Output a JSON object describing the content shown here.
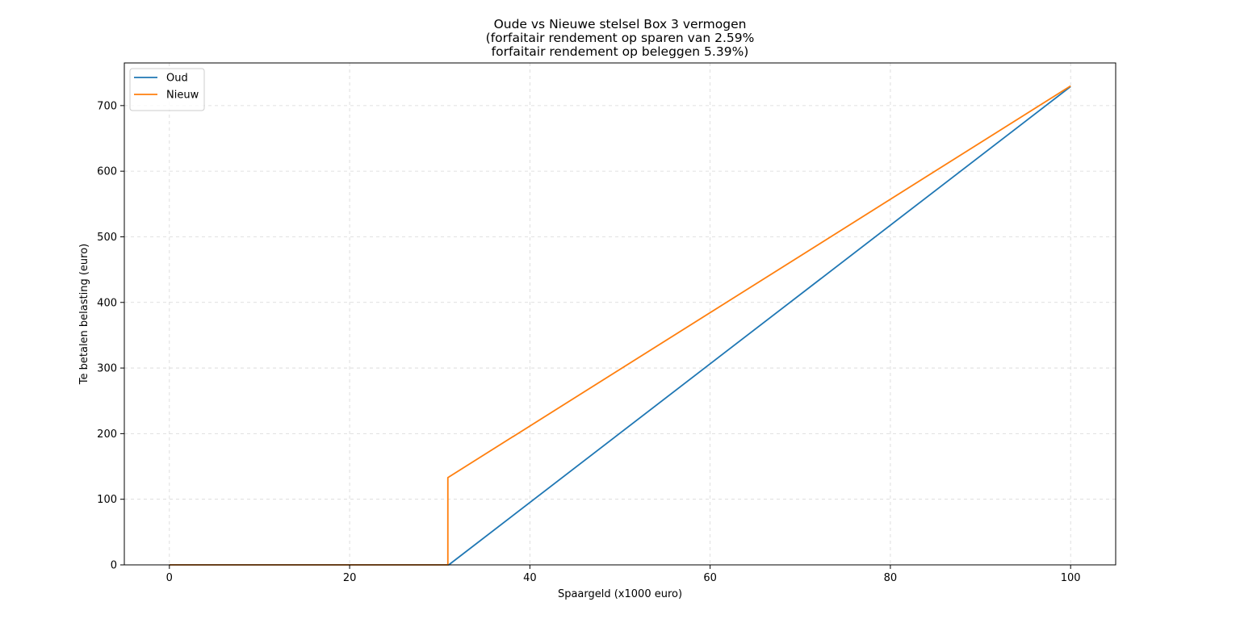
{
  "chart_data": {
    "type": "line",
    "title_lines": [
      "Oude vs Nieuwe stelsel Box 3 vermogen",
      "(forfaitair rendement op sparen van 2.59%",
      "forfaitair rendement op beleggen 5.39%)"
    ],
    "xlabel": "Spaargeld (x1000 euro)",
    "ylabel": "Te betalen belasting (euro)",
    "xlim": [
      -5,
      105
    ],
    "ylim": [
      0,
      765
    ],
    "xticks": [
      0,
      20,
      40,
      60,
      80,
      100
    ],
    "yticks": [
      0,
      100,
      200,
      300,
      400,
      500,
      600,
      700
    ],
    "grid": true,
    "legend_position": "top-left",
    "series": [
      {
        "name": "Oud",
        "color": "#1f77b4",
        "points": [
          [
            0,
            0
          ],
          [
            31,
            0
          ],
          [
            100,
            729
          ]
        ]
      },
      {
        "name": "Nieuw",
        "color": "#ff7f0e",
        "points": [
          [
            0,
            0
          ],
          [
            30.9,
            0
          ],
          [
            30.9,
            133
          ],
          [
            100,
            730
          ]
        ]
      }
    ]
  }
}
